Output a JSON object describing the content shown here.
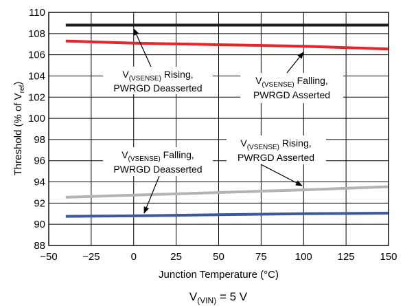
{
  "chart_data": {
    "type": "line",
    "xlabel": "Junction Temperature (°C)",
    "ylabel": {
      "main": "Threshold (% of V",
      "sub": "ref",
      "close": ")"
    },
    "xlim": [
      -50,
      150
    ],
    "ylim": [
      88,
      110
    ],
    "xticks": [
      -50,
      -25,
      0,
      25,
      50,
      75,
      100,
      125,
      150
    ],
    "yticks": [
      88,
      90,
      92,
      94,
      96,
      98,
      100,
      102,
      104,
      106,
      108,
      110
    ],
    "x_tick_labels": [
      "−50",
      "−25",
      "0",
      "25",
      "50",
      "75",
      "100",
      "125",
      "150"
    ],
    "y_tick_labels": [
      "88",
      "90",
      "92",
      "94",
      "96",
      "98",
      "100",
      "102",
      "104",
      "106",
      "108",
      "110"
    ],
    "grid": true,
    "series": [
      {
        "color": "#1a1a1a",
        "x": [
          -40,
          0,
          50,
          100,
          150
        ],
        "y": [
          108.8,
          108.8,
          108.8,
          108.8,
          108.8
        ]
      },
      {
        "color": "#e8242b",
        "x": [
          -40,
          0,
          50,
          100,
          150
        ],
        "y": [
          107.3,
          107.1,
          106.95,
          106.8,
          106.55
        ]
      },
      {
        "color": "#b3b3b3",
        "x": [
          -40,
          0,
          50,
          100,
          150
        ],
        "y": [
          92.55,
          92.75,
          93.0,
          93.25,
          93.55
        ]
      },
      {
        "color": "#3a5a9b",
        "x": [
          -40,
          0,
          50,
          100,
          150
        ],
        "y": [
          90.75,
          90.8,
          90.9,
          91.0,
          91.05
        ]
      }
    ],
    "annotations": [
      {
        "line1": {
          "pre": "V",
          "sub": "(VSENSE)",
          "post": " Rising,"
        },
        "line2": "PWRGD Deasserted"
      },
      {
        "line1": {
          "pre": "V",
          "sub": "(VSENSE)",
          "post": " Falling,"
        },
        "line2": "PWRGD Asserted"
      },
      {
        "line1": {
          "pre": "V",
          "sub": "(VSENSE)",
          "post": " Falling,"
        },
        "line2": "PWRGD Deasserted"
      },
      {
        "line1": {
          "pre": "V",
          "sub": "(VSENSE)",
          "post": " Rising,"
        },
        "line2": "PWRGD Asserted"
      }
    ],
    "footnote": {
      "pre": "V",
      "sub": "(VIN)",
      "post": " = 5 V"
    }
  }
}
